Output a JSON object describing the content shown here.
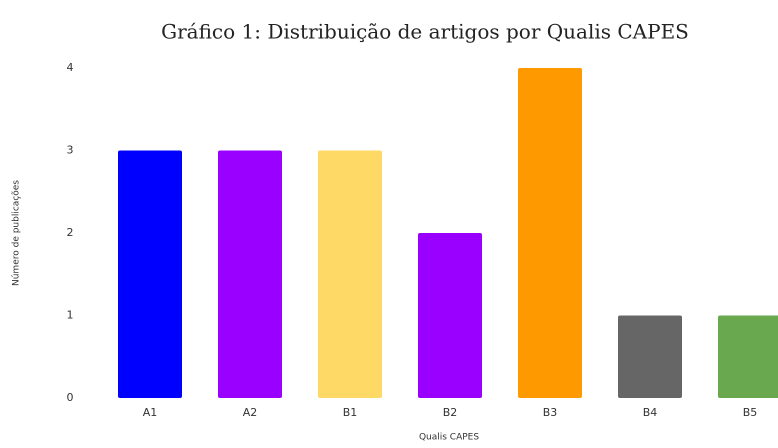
{
  "chart_data": {
    "type": "bar",
    "title": "Gráfico 1: Distribuição de artigos por Qualis CAPES",
    "x_label": "Qualis CAPES",
    "y_label": "Número de publicações",
    "categories": [
      "A1",
      "A2",
      "B1",
      "B2",
      "B3",
      "B4",
      "B5"
    ],
    "values": [
      3,
      3,
      3,
      2,
      4,
      1,
      1
    ],
    "colors": [
      "#0000ff",
      "#9900ff",
      "#ffd966",
      "#9900ff",
      "#ff9900",
      "#666666",
      "#6aa84f"
    ],
    "ylim": [
      0,
      4
    ],
    "yticks": [
      0,
      1,
      2,
      3,
      4
    ],
    "grid": false
  }
}
